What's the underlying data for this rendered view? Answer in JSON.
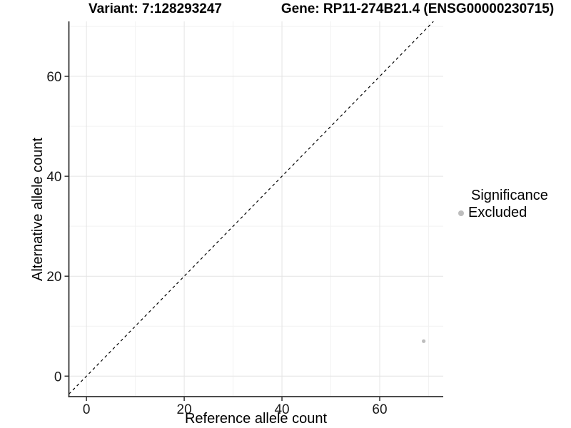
{
  "header": {
    "title_variant": "Variant: 7:128293247",
    "title_gene": "Gene: RP11-274B21.4 (ENSG00000230715)"
  },
  "legend": {
    "title": "Significance",
    "items": [
      {
        "label": "Excluded",
        "color": "#bdbdbd"
      }
    ]
  },
  "chart_data": {
    "type": "scatter",
    "title": "Variant: 7:128293247  /  Gene: RP11-274B21.4 (ENSG00000230715)",
    "xlabel": "Reference allele count",
    "ylabel": "Alternative allele count",
    "xlim": [
      -3.6,
      73
    ],
    "ylim": [
      -4.1,
      71
    ],
    "x_major_ticks": [
      0,
      20,
      40,
      60
    ],
    "y_major_ticks": [
      0,
      20,
      40,
      60
    ],
    "x_minor_ticks": [
      10,
      30,
      50,
      70
    ],
    "y_minor_ticks": [
      10,
      30,
      50,
      70
    ],
    "grid": true,
    "legend_position": "right",
    "series": [
      {
        "name": "Excluded",
        "color": "#bdbdbd",
        "points": [
          {
            "x": 69,
            "y": 7
          }
        ]
      }
    ],
    "reference_line": {
      "kind": "identity y=x",
      "style": "dashed",
      "color": "#000000"
    },
    "colors": {
      "grid_major": "#e4e4e4",
      "grid_minor": "#f2f2f2",
      "axis": "#333333",
      "tick_text": "#1a1a1a",
      "background": "#ffffff"
    }
  }
}
